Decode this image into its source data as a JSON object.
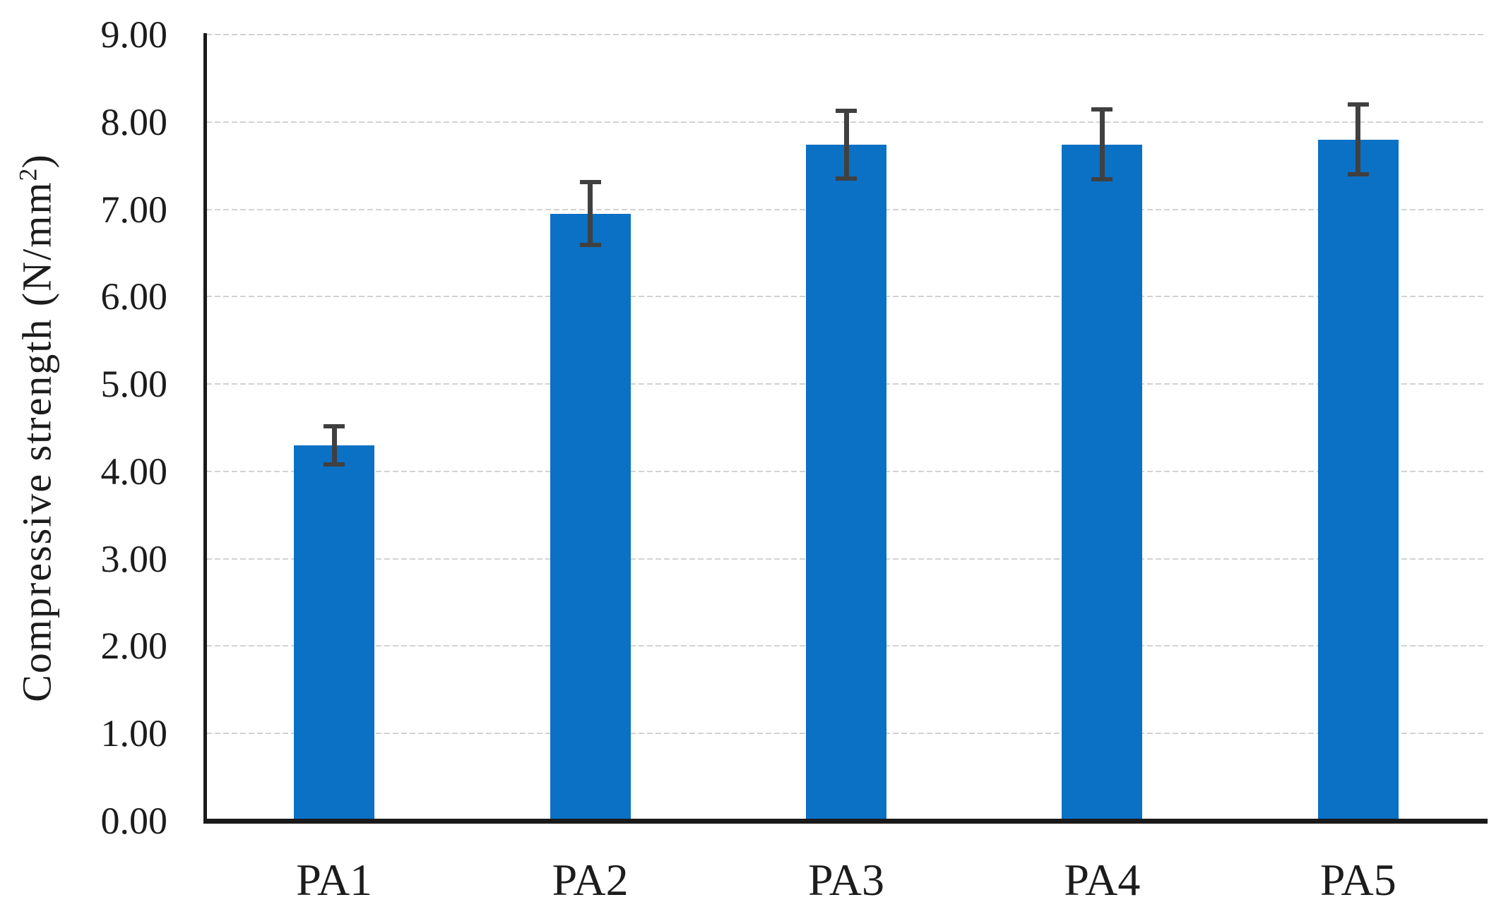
{
  "figure": {
    "background": "#ffffff"
  },
  "chart_data": {
    "type": "bar",
    "title": "",
    "categories": [
      "PA1",
      "PA2",
      "PA3",
      "PA4",
      "PA5"
    ],
    "values": [
      4.3,
      6.95,
      7.74,
      7.74,
      7.8
    ],
    "error_bars": [
      0.22,
      0.36,
      0.39,
      0.4,
      0.4
    ],
    "xlabel": "",
    "ylabel": "Compressive strength (N/mm²)",
    "ylabel_parts": {
      "prefix": "Compressive strength (N/mm",
      "superscript": "2",
      "suffix": ")"
    },
    "ylim": [
      0,
      9
    ],
    "ytick_step": 1.0,
    "ytick_labels": [
      "0.00",
      "1.00",
      "2.00",
      "3.00",
      "4.00",
      "5.00",
      "6.00",
      "7.00",
      "8.00",
      "9.00"
    ],
    "grid": "horizontal-dashed",
    "legend": "none",
    "bar_color": "#0A71C5",
    "error_bar_color": "#404040",
    "axis_color": "#1a1a1a",
    "gridline_color": "#d2d2d2"
  }
}
